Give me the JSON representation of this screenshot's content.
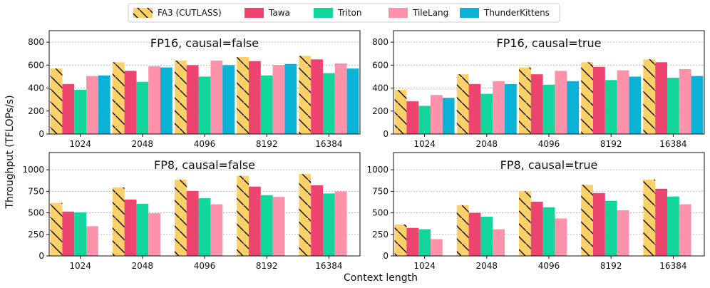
{
  "legend": {
    "items": [
      {
        "name": "FA3 (CUTLASS)",
        "color": "#FDD068",
        "hatch": true
      },
      {
        "name": "Tawa",
        "color": "#EE4570",
        "hatch": false
      },
      {
        "name": "Triton",
        "color": "#12D69B",
        "hatch": false
      },
      {
        "name": "TileLang",
        "color": "#FF92AB",
        "hatch": false
      },
      {
        "name": "ThunderKittens",
        "color": "#0BB2D6",
        "hatch": false
      }
    ]
  },
  "figure": {
    "ylabel": "Throughput (TFLOPs/s)",
    "xlabel": "Context length"
  },
  "chart_data": [
    {
      "type": "bar",
      "title": "FP16, causal=false",
      "categories": [
        "1024",
        "2048",
        "4096",
        "8192",
        "16384"
      ],
      "ylim": [
        0,
        900
      ],
      "yticks": [
        0,
        200,
        400,
        600,
        800
      ],
      "grid": true,
      "series": [
        {
          "name": "FA3 (CUTLASS)",
          "values": [
            570,
            625,
            640,
            670,
            680
          ]
        },
        {
          "name": "Tawa",
          "values": [
            435,
            550,
            600,
            635,
            650
          ]
        },
        {
          "name": "Triton",
          "values": [
            385,
            455,
            500,
            510,
            530
          ]
        },
        {
          "name": "TileLang",
          "values": [
            505,
            590,
            640,
            600,
            615
          ]
        },
        {
          "name": "ThunderKittens",
          "values": [
            510,
            580,
            600,
            610,
            570
          ]
        }
      ]
    },
    {
      "type": "bar",
      "title": "FP16, causal=true",
      "categories": [
        "1024",
        "2048",
        "4096",
        "8192",
        "16384"
      ],
      "ylim": [
        0,
        900
      ],
      "yticks": [
        0,
        200,
        400,
        600,
        800
      ],
      "grid": true,
      "series": [
        {
          "name": "FA3 (CUTLASS)",
          "values": [
            385,
            520,
            580,
            625,
            650
          ]
        },
        {
          "name": "Tawa",
          "values": [
            285,
            435,
            520,
            585,
            625
          ]
        },
        {
          "name": "Triton",
          "values": [
            245,
            350,
            430,
            470,
            490
          ]
        },
        {
          "name": "TileLang",
          "values": [
            340,
            460,
            550,
            555,
            565
          ]
        },
        {
          "name": "ThunderKittens",
          "values": [
            315,
            435,
            460,
            500,
            505
          ]
        }
      ]
    },
    {
      "type": "bar",
      "title": "FP8, causal=false",
      "categories": [
        "1024",
        "2048",
        "4096",
        "8192",
        "16384"
      ],
      "ylim": [
        0,
        1200
      ],
      "yticks": [
        0,
        250,
        500,
        750,
        1000
      ],
      "grid": true,
      "series": [
        {
          "name": "FA3 (CUTLASS)",
          "values": [
            615,
            795,
            885,
            930,
            950
          ]
        },
        {
          "name": "Tawa",
          "values": [
            515,
            655,
            755,
            805,
            820
          ]
        },
        {
          "name": "Triton",
          "values": [
            505,
            605,
            670,
            705,
            725
          ]
        },
        {
          "name": "TileLang",
          "values": [
            345,
            495,
            600,
            685,
            750
          ]
        }
      ]
    },
    {
      "type": "bar",
      "title": "FP8, causal=true",
      "categories": [
        "1024",
        "2048",
        "4096",
        "8192",
        "16384"
      ],
      "ylim": [
        0,
        1200
      ],
      "yticks": [
        0,
        250,
        500,
        750,
        1000
      ],
      "grid": true,
      "series": [
        {
          "name": "FA3 (CUTLASS)",
          "values": [
            365,
            590,
            750,
            825,
            885
          ]
        },
        {
          "name": "Tawa",
          "values": [
            325,
            500,
            630,
            730,
            780
          ]
        },
        {
          "name": "Triton",
          "values": [
            310,
            455,
            565,
            640,
            690
          ]
        },
        {
          "name": "TileLang",
          "values": [
            195,
            310,
            435,
            530,
            600
          ]
        }
      ]
    }
  ]
}
